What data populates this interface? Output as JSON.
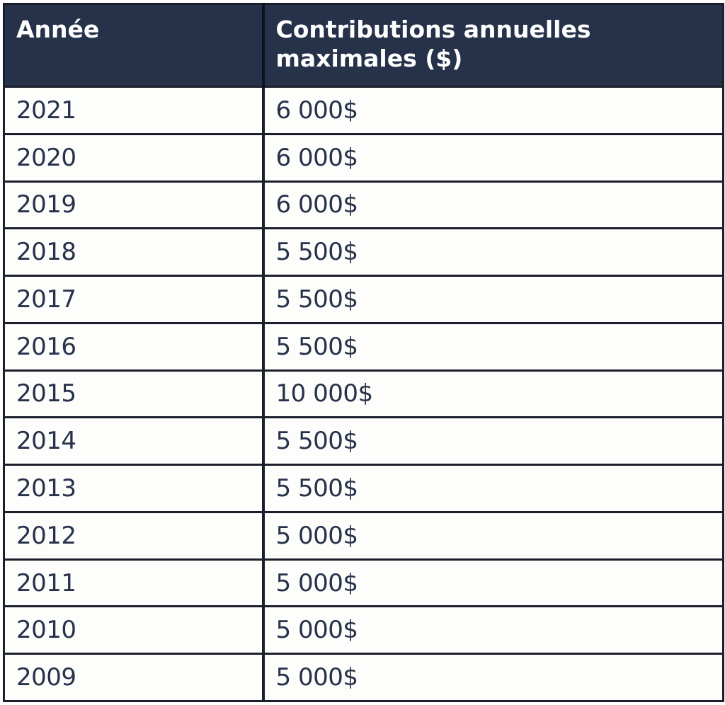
{
  "table": {
    "headers": {
      "year": "Année",
      "amount": "Contributions annuelles maximales ($)"
    },
    "rows": [
      {
        "year": "2021",
        "amount": "6 000$"
      },
      {
        "year": "2020",
        "amount": "6 000$"
      },
      {
        "year": "2019",
        "amount": "6 000$"
      },
      {
        "year": "2018",
        "amount": "5 500$"
      },
      {
        "year": "2017",
        "amount": "5 500$"
      },
      {
        "year": "2016",
        "amount": "5 500$"
      },
      {
        "year": "2015",
        "amount": "10 000$"
      },
      {
        "year": "2014",
        "amount": "5 500$"
      },
      {
        "year": "2013",
        "amount": "5 500$"
      },
      {
        "year": "2012",
        "amount": "5 000$"
      },
      {
        "year": "2011",
        "amount": "5 000$"
      },
      {
        "year": "2010",
        "amount": "5 000$"
      },
      {
        "year": "2009",
        "amount": "5 000$"
      }
    ]
  },
  "colors": {
    "header_bg": "#26314a",
    "header_text": "#ffffff",
    "body_text": "#26314a",
    "border": "#1a1f2b"
  }
}
